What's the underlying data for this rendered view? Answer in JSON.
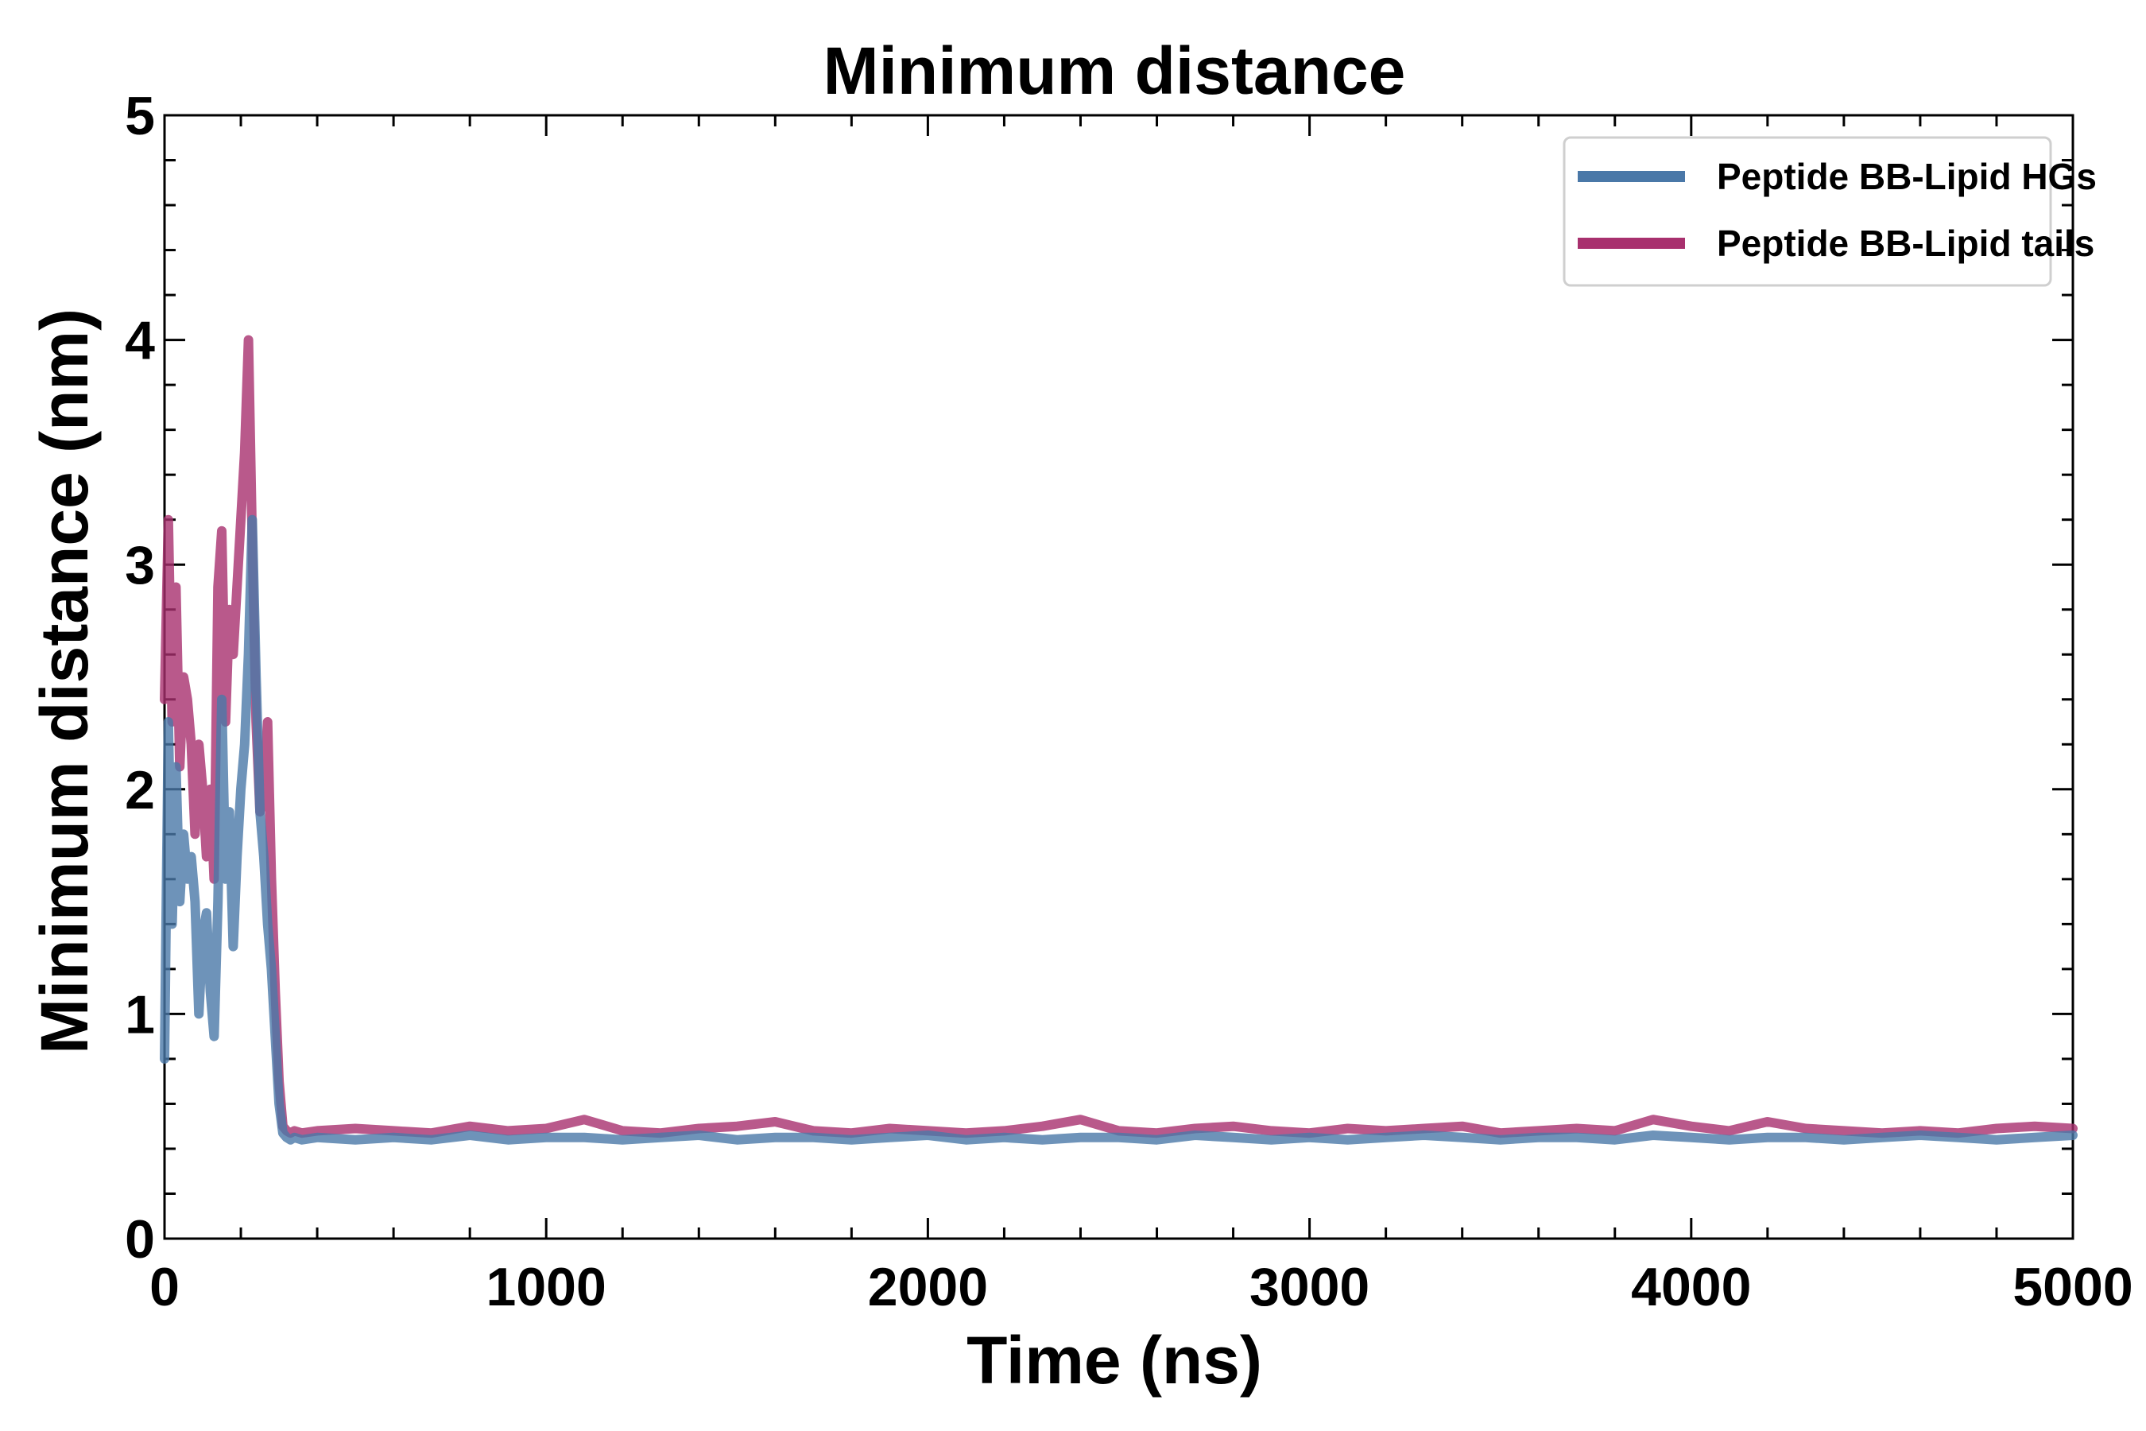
{
  "chart_data": {
    "type": "line",
    "title": "Minimum distance",
    "xlabel": "Time (ns)",
    "ylabel": "Minimum distance (nm)",
    "xlim": [
      0,
      5000
    ],
    "ylim": [
      0,
      5
    ],
    "xticks": [
      0,
      1000,
      2000,
      3000,
      4000,
      5000
    ],
    "yticks": [
      0,
      1,
      2,
      3,
      4,
      5
    ],
    "xtick_labels": [
      "0",
      "1000",
      "2000",
      "3000",
      "4000",
      "5000"
    ],
    "ytick_labels": [
      "0",
      "1",
      "2",
      "3",
      "4",
      "5"
    ],
    "grid": false,
    "legend_position": "top-right",
    "series": [
      {
        "name": "Peptide BB-Lipid HGs",
        "color": "#4a78a8",
        "x": [
          0,
          10,
          20,
          30,
          40,
          50,
          60,
          70,
          80,
          90,
          100,
          110,
          120,
          130,
          140,
          150,
          160,
          170,
          180,
          190,
          200,
          210,
          220,
          230,
          240,
          250,
          260,
          270,
          280,
          290,
          300,
          310,
          320,
          330,
          340,
          360,
          400,
          500,
          600,
          700,
          800,
          900,
          1000,
          1100,
          1200,
          1300,
          1400,
          1500,
          1600,
          1700,
          1800,
          1900,
          2000,
          2100,
          2200,
          2300,
          2400,
          2500,
          2600,
          2700,
          2800,
          2900,
          3000,
          3100,
          3200,
          3300,
          3400,
          3500,
          3600,
          3700,
          3800,
          3900,
          4000,
          4100,
          4200,
          4300,
          4400,
          4500,
          4600,
          4700,
          4800,
          4900,
          5000
        ],
        "y": [
          0.8,
          2.3,
          1.4,
          2.1,
          1.5,
          1.8,
          1.6,
          1.7,
          1.5,
          1.0,
          1.35,
          1.45,
          1.1,
          0.9,
          1.5,
          2.4,
          1.6,
          1.9,
          1.3,
          1.7,
          2.0,
          2.2,
          2.6,
          3.2,
          2.5,
          1.9,
          1.7,
          1.4,
          1.2,
          0.9,
          0.6,
          0.47,
          0.45,
          0.44,
          0.45,
          0.44,
          0.45,
          0.44,
          0.45,
          0.44,
          0.46,
          0.44,
          0.45,
          0.45,
          0.44,
          0.45,
          0.46,
          0.44,
          0.45,
          0.45,
          0.44,
          0.45,
          0.46,
          0.44,
          0.45,
          0.44,
          0.45,
          0.45,
          0.44,
          0.46,
          0.45,
          0.44,
          0.45,
          0.44,
          0.45,
          0.46,
          0.45,
          0.44,
          0.45,
          0.45,
          0.44,
          0.46,
          0.45,
          0.44,
          0.45,
          0.45,
          0.44,
          0.45,
          0.46,
          0.45,
          0.44,
          0.45,
          0.46
        ]
      },
      {
        "name": "Peptide BB-Lipid tails",
        "color": "#a8306e",
        "x": [
          0,
          10,
          20,
          30,
          40,
          50,
          60,
          70,
          80,
          90,
          100,
          110,
          120,
          130,
          140,
          150,
          160,
          170,
          180,
          190,
          200,
          210,
          220,
          230,
          240,
          250,
          260,
          270,
          280,
          290,
          300,
          310,
          320,
          330,
          340,
          360,
          400,
          500,
          600,
          700,
          800,
          900,
          1000,
          1100,
          1200,
          1300,
          1400,
          1500,
          1600,
          1700,
          1800,
          1900,
          2000,
          2100,
          2200,
          2300,
          2400,
          2500,
          2600,
          2700,
          2800,
          2900,
          3000,
          3100,
          3200,
          3300,
          3400,
          3500,
          3600,
          3700,
          3800,
          3900,
          4000,
          4100,
          4200,
          4300,
          4400,
          4500,
          4600,
          4700,
          4800,
          4900,
          5000
        ],
        "y": [
          2.4,
          3.2,
          2.3,
          2.9,
          2.1,
          2.5,
          2.4,
          2.2,
          1.8,
          2.2,
          2.0,
          1.7,
          2.0,
          1.6,
          2.9,
          3.15,
          2.3,
          2.8,
          2.6,
          2.9,
          3.2,
          3.5,
          4.0,
          3.1,
          2.3,
          1.9,
          2.0,
          2.3,
          1.6,
          1.1,
          0.7,
          0.5,
          0.48,
          0.47,
          0.48,
          0.47,
          0.48,
          0.49,
          0.48,
          0.47,
          0.5,
          0.48,
          0.49,
          0.53,
          0.48,
          0.47,
          0.49,
          0.5,
          0.52,
          0.48,
          0.47,
          0.49,
          0.48,
          0.47,
          0.48,
          0.5,
          0.53,
          0.48,
          0.47,
          0.49,
          0.5,
          0.48,
          0.47,
          0.49,
          0.48,
          0.49,
          0.5,
          0.47,
          0.48,
          0.49,
          0.48,
          0.53,
          0.5,
          0.48,
          0.52,
          0.49,
          0.48,
          0.47,
          0.48,
          0.47,
          0.49,
          0.5,
          0.49
        ]
      }
    ]
  }
}
